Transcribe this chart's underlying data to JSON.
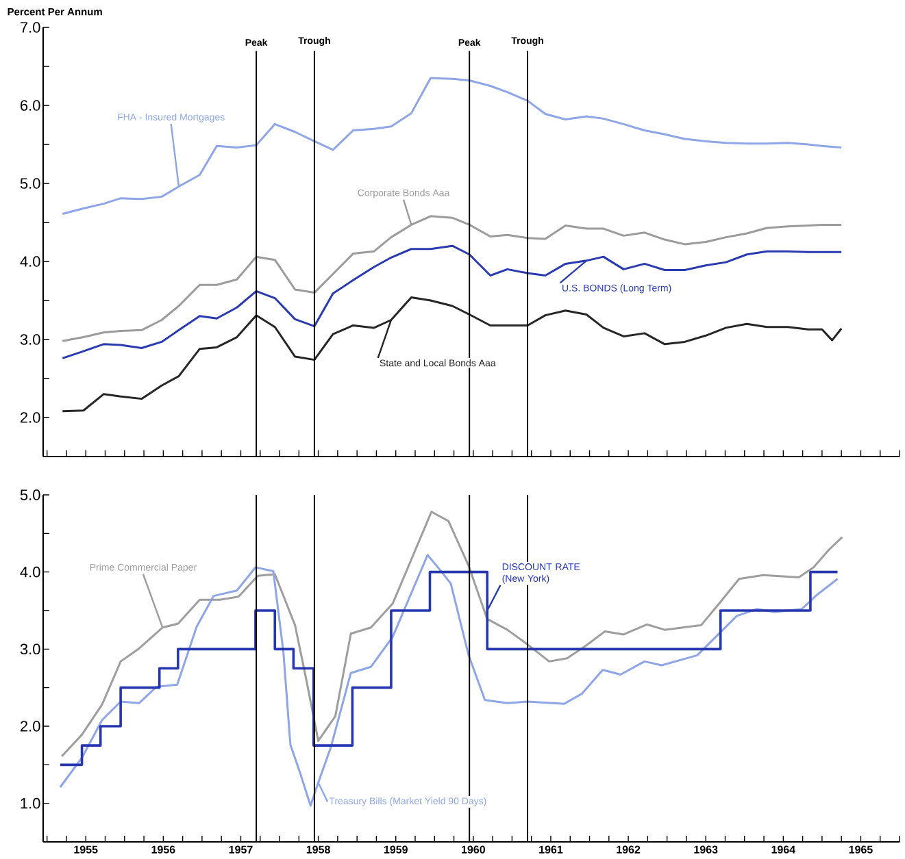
{
  "chart_data": [
    {
      "type": "line",
      "ylabel": "Percent Per Annum",
      "tick_labels": "y",
      "xlim": [
        1954.95,
        1966
      ],
      "ylim": [
        1.5,
        7
      ],
      "xticks": [
        {
          "value": 1955,
          "label": null
        },
        {
          "value": 1955.25,
          "label": null
        },
        {
          "value": 1955.5,
          "label": null
        },
        {
          "value": 1955.75,
          "label": null
        },
        {
          "value": 1956,
          "label": null
        },
        {
          "value": 1956.25,
          "label": null
        },
        {
          "value": 1956.5,
          "label": null
        },
        {
          "value": 1956.75,
          "label": null
        },
        {
          "value": 1957,
          "label": null
        },
        {
          "value": 1957.25,
          "label": null
        },
        {
          "value": 1957.5,
          "label": null
        },
        {
          "value": 1957.75,
          "label": null
        },
        {
          "value": 1958,
          "label": null
        },
        {
          "value": 1958.25,
          "label": null
        },
        {
          "value": 1958.5,
          "label": null
        },
        {
          "value": 1958.75,
          "label": null
        },
        {
          "value": 1959,
          "label": null
        },
        {
          "value": 1959.25,
          "label": null
        },
        {
          "value": 1959.5,
          "label": null
        },
        {
          "value": 1959.75,
          "label": null
        },
        {
          "value": 1960,
          "label": null
        },
        {
          "value": 1960.25,
          "label": null
        },
        {
          "value": 1960.5,
          "label": null
        },
        {
          "value": 1960.75,
          "label": null
        },
        {
          "value": 1961,
          "label": null
        },
        {
          "value": 1961.25,
          "label": null
        },
        {
          "value": 1961.5,
          "label": null
        },
        {
          "value": 1961.75,
          "label": null
        },
        {
          "value": 1962,
          "label": null
        },
        {
          "value": 1962.25,
          "label": null
        },
        {
          "value": 1962.5,
          "label": null
        },
        {
          "value": 1962.75,
          "label": null
        },
        {
          "value": 1963,
          "label": null
        },
        {
          "value": 1963.25,
          "label": null
        },
        {
          "value": 1963.5,
          "label": null
        },
        {
          "value": 1963.75,
          "label": null
        },
        {
          "value": 1964,
          "label": null
        },
        {
          "value": 1964.25,
          "label": null
        },
        {
          "value": 1964.5,
          "label": null
        },
        {
          "value": 1964.75,
          "label": null
        },
        {
          "value": 1965,
          "label": null
        },
        {
          "value": 1965.25,
          "label": null
        },
        {
          "value": 1965.5,
          "label": null
        },
        {
          "value": 1965.75,
          "label": null
        },
        {
          "value": 1966,
          "label": null
        }
      ],
      "yticks": [
        {
          "value": 2,
          "label": "2.0"
        },
        {
          "value": 2.5,
          "label": null
        },
        {
          "value": 3,
          "label": "3.0"
        },
        {
          "value": 3.5,
          "label": null
        },
        {
          "value": 4,
          "label": "4.0"
        },
        {
          "value": 4.5,
          "label": null
        },
        {
          "value": 5,
          "label": "5.0"
        },
        {
          "value": 5.5,
          "label": null
        },
        {
          "value": 6,
          "label": "6.0"
        },
        {
          "value": 6.5,
          "label": null
        },
        {
          "value": 7,
          "label": "7.0"
        }
      ],
      "ref_lines": [
        {
          "axis": "x",
          "value": 1957.7,
          "label": "Peak"
        },
        {
          "axis": "x",
          "value": 1958.45,
          "label": "Trough"
        },
        {
          "axis": "x",
          "value": 1960.45,
          "label": "Peak"
        },
        {
          "axis": "x",
          "value": 1961.2,
          "label": "Trough"
        }
      ],
      "x": [
        1955.2,
        1955.47,
        1955.73,
        1955.95,
        1956.22,
        1956.48,
        1956.7,
        1956.97,
        1957.19,
        1957.45,
        1957.7,
        1957.94,
        1958.2,
        1958.45,
        1958.69,
        1958.95,
        1959.22,
        1959.44,
        1959.7,
        1959.95,
        1960.23,
        1960.45,
        1960.72,
        1960.94,
        1961.2,
        1961.43,
        1961.69,
        1961.96,
        1962.18,
        1962.44,
        1962.71,
        1962.97,
        1963.23,
        1963.5,
        1963.76,
        1964.03,
        1964.29,
        1964.56,
        1964.82,
        1965.0,
        1965.13,
        1965.25
      ],
      "series": [
        {
          "name": "FHA - Insured Mortgages",
          "color": "#8ea5e6",
          "values": [
            4.61,
            4.68,
            4.74,
            4.81,
            4.8,
            4.83,
            4.96,
            5.11,
            5.48,
            5.46,
            5.49,
            5.76,
            5.66,
            5.54,
            5.43,
            5.68,
            5.7,
            5.73,
            5.9,
            6.35,
            6.34,
            6.32,
            6.25,
            6.17,
            6.06,
            5.89,
            5.82,
            5.86,
            5.83,
            5.76,
            5.68,
            5.63,
            5.57,
            5.54,
            5.52,
            5.51,
            5.51,
            5.52,
            5.5,
            5.48,
            5.47,
            5.46
          ]
        },
        {
          "name": "Corporate Bonds Aaa",
          "color": "#9b9b9b",
          "values": [
            2.98,
            3.03,
            3.09,
            3.11,
            3.12,
            3.25,
            3.43,
            3.7,
            3.7,
            3.77,
            4.06,
            4.02,
            3.64,
            3.6,
            3.84,
            4.1,
            4.13,
            4.31,
            4.47,
            4.58,
            4.56,
            4.47,
            4.32,
            4.34,
            4.3,
            4.29,
            4.46,
            4.42,
            4.42,
            4.33,
            4.37,
            4.28,
            4.22,
            4.25,
            4.31,
            4.36,
            4.43,
            4.45,
            4.46,
            4.47,
            4.47,
            4.47
          ]
        },
        {
          "name": "U.S. BONDS (Long Term)",
          "color": "#2a3bb0",
          "values": [
            2.76,
            2.85,
            2.94,
            2.93,
            2.89,
            2.97,
            3.12,
            3.3,
            3.27,
            3.41,
            3.62,
            3.53,
            3.26,
            3.17,
            3.59,
            3.76,
            3.93,
            4.05,
            4.16,
            4.16,
            4.2,
            4.09,
            3.82,
            3.9,
            3.85,
            3.82,
            3.97,
            4.01,
            4.06,
            3.9,
            3.97,
            3.89,
            3.89,
            3.95,
            3.99,
            4.09,
            4.13,
            4.13,
            4.12,
            4.12,
            4.12,
            4.12
          ]
        },
        {
          "name": "State and Local Bonds Aaa",
          "color": "#262626",
          "values": [
            2.08,
            2.09,
            2.3,
            2.27,
            2.24,
            2.41,
            2.53,
            2.88,
            2.9,
            3.03,
            3.31,
            3.16,
            2.78,
            2.74,
            3.07,
            3.18,
            3.15,
            3.25,
            3.54,
            3.5,
            3.43,
            3.32,
            3.18,
            3.18,
            3.18,
            3.31,
            3.37,
            3.32,
            3.15,
            3.04,
            3.08,
            2.94,
            2.97,
            3.05,
            3.15,
            3.2,
            3.16,
            3.16,
            3.13,
            3.13,
            2.99,
            3.14
          ]
        }
      ]
    },
    {
      "type": "line",
      "xlim": [
        1954.95,
        1966
      ],
      "ylim": [
        0.5,
        5
      ],
      "xticks": [
        {
          "value": 1955,
          "label": null
        },
        {
          "value": 1955.25,
          "label": null
        },
        {
          "value": 1955.5,
          "label": "1955"
        },
        {
          "value": 1955.75,
          "label": null
        },
        {
          "value": 1956,
          "label": null
        },
        {
          "value": 1956.25,
          "label": null
        },
        {
          "value": 1956.5,
          "label": "1956"
        },
        {
          "value": 1956.75,
          "label": null
        },
        {
          "value": 1957,
          "label": null
        },
        {
          "value": 1957.25,
          "label": null
        },
        {
          "value": 1957.5,
          "label": "1957"
        },
        {
          "value": 1957.75,
          "label": null
        },
        {
          "value": 1958,
          "label": null
        },
        {
          "value": 1958.25,
          "label": null
        },
        {
          "value": 1958.5,
          "label": "1958"
        },
        {
          "value": 1958.75,
          "label": null
        },
        {
          "value": 1959,
          "label": null
        },
        {
          "value": 1959.25,
          "label": null
        },
        {
          "value": 1959.5,
          "label": "1959"
        },
        {
          "value": 1959.75,
          "label": null
        },
        {
          "value": 1960,
          "label": null
        },
        {
          "value": 1960.25,
          "label": null
        },
        {
          "value": 1960.5,
          "label": "1960"
        },
        {
          "value": 1960.75,
          "label": null
        },
        {
          "value": 1961,
          "label": null
        },
        {
          "value": 1961.25,
          "label": null
        },
        {
          "value": 1961.5,
          "label": "1961"
        },
        {
          "value": 1961.75,
          "label": null
        },
        {
          "value": 1962,
          "label": null
        },
        {
          "value": 1962.25,
          "label": null
        },
        {
          "value": 1962.5,
          "label": "1962"
        },
        {
          "value": 1962.75,
          "label": null
        },
        {
          "value": 1963,
          "label": null
        },
        {
          "value": 1963.25,
          "label": null
        },
        {
          "value": 1963.5,
          "label": "1963"
        },
        {
          "value": 1963.75,
          "label": null
        },
        {
          "value": 1964,
          "label": null
        },
        {
          "value": 1964.25,
          "label": null
        },
        {
          "value": 1964.5,
          "label": "1964"
        },
        {
          "value": 1964.75,
          "label": null
        },
        {
          "value": 1965,
          "label": null
        },
        {
          "value": 1965.25,
          "label": null
        },
        {
          "value": 1965.5,
          "label": "1965"
        },
        {
          "value": 1965.75,
          "label": null
        },
        {
          "value": 1966,
          "label": null
        }
      ],
      "yticks": [
        {
          "value": 1,
          "label": "1.0"
        },
        {
          "value": 1.5,
          "label": null
        },
        {
          "value": 2,
          "label": "2.0"
        },
        {
          "value": 2.5,
          "label": null
        },
        {
          "value": 3,
          "label": "3.0"
        },
        {
          "value": 3.5,
          "label": null
        },
        {
          "value": 4,
          "label": "4.0"
        },
        {
          "value": 4.5,
          "label": null
        },
        {
          "value": 5,
          "label": "5.0"
        }
      ],
      "ref_lines": [
        {
          "axis": "x",
          "value": 1957.7
        },
        {
          "axis": "x",
          "value": 1958.45
        },
        {
          "axis": "x",
          "value": 1960.45
        },
        {
          "axis": "x",
          "value": 1961.2
        }
      ],
      "series": [
        {
          "name": "Prime Commercial Paper",
          "color": "#9e9e9e",
          "x": [
            1955.19,
            1955.45,
            1955.71,
            1955.95,
            1956.19,
            1956.49,
            1956.69,
            1956.97,
            1957.23,
            1957.47,
            1957.72,
            1957.94,
            1958.2,
            1958.35,
            1958.5,
            1958.72,
            1958.92,
            1959.18,
            1959.46,
            1959.96,
            1960.18,
            1960.44,
            1960.68,
            1960.94,
            1961.2,
            1961.48,
            1961.71,
            1961.96,
            1962.2,
            1962.44,
            1962.74,
            1962.97,
            1963.44,
            1963.68,
            1963.93,
            1964.24,
            1964.7,
            1964.89,
            1965.09,
            1965.26
          ],
          "values": [
            1.61,
            1.89,
            2.28,
            2.84,
            3.01,
            3.28,
            3.33,
            3.64,
            3.64,
            3.68,
            3.95,
            3.97,
            3.31,
            2.58,
            1.81,
            2.13,
            3.2,
            3.28,
            3.59,
            4.78,
            4.66,
            4.08,
            3.39,
            3.25,
            3.06,
            2.84,
            2.88,
            3.05,
            3.23,
            3.19,
            3.32,
            3.25,
            3.31,
            3.6,
            3.91,
            3.96,
            3.93,
            4.06,
            4.29,
            4.45
          ]
        },
        {
          "name": "Treasury Bills (Market Yield 90 Days)",
          "color": "#8ea5e6",
          "x": [
            1955.17,
            1955.45,
            1955.71,
            1955.95,
            1956.19,
            1956.41,
            1956.68,
            1956.93,
            1957.15,
            1957.45,
            1957.69,
            1957.92,
            1958.05,
            1958.14,
            1958.27,
            1958.4,
            1958.5,
            1958.66,
            1958.92,
            1959.18,
            1959.46,
            1959.91,
            1960.06,
            1960.21,
            1960.44,
            1960.65,
            1960.94,
            1961.2,
            1961.67,
            1961.9,
            1962.17,
            1962.4,
            1962.71,
            1962.93,
            1963.39,
            1963.7,
            1963.9,
            1964.16,
            1964.39,
            1964.74,
            1964.93,
            1965.2
          ],
          "values": [
            1.21,
            1.59,
            2.08,
            2.32,
            2.3,
            2.51,
            2.54,
            3.29,
            3.69,
            3.76,
            4.06,
            4.01,
            2.96,
            1.76,
            1.38,
            0.97,
            1.27,
            1.72,
            2.69,
            2.77,
            3.16,
            4.22,
            4.04,
            3.85,
            2.92,
            2.34,
            2.3,
            2.32,
            2.29,
            2.42,
            2.73,
            2.67,
            2.84,
            2.79,
            2.92,
            3.23,
            3.43,
            3.52,
            3.48,
            3.52,
            3.7,
            3.91
          ]
        },
        {
          "name": "DISCOUNT RATE (New York)",
          "color": "#2536b0",
          "type": "step",
          "x": [
            1955.17,
            1955.45,
            1955.69,
            1955.95,
            1956.45,
            1956.69,
            1957.69,
            1957.94,
            1958.18,
            1958.44,
            1958.94,
            1959.44,
            1959.94,
            1960.68,
            1963.69,
            1964.85,
            1965.2
          ],
          "values": [
            1.5,
            1.75,
            2.0,
            2.5,
            2.75,
            3.0,
            3.5,
            3.0,
            2.75,
            1.75,
            2.5,
            3.5,
            4.0,
            3.0,
            3.5,
            4.0,
            4.0
          ]
        }
      ]
    }
  ]
}
